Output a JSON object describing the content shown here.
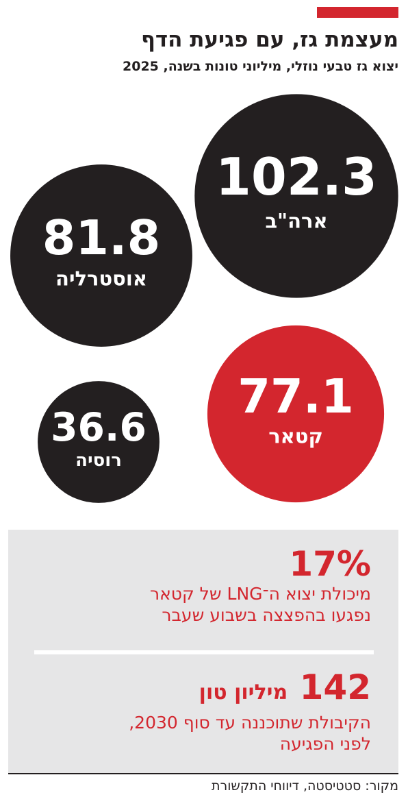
{
  "chart_data": {
    "type": "bubble",
    "title": "מעצמת גז, עם פגיעת הדף",
    "subtitle": "יצוא גז טבעי נוזלי, מיליוני טונות בשנה, 2025",
    "categories": [
      "ארה\"ב",
      "אוסטרליה",
      "קטאר",
      "רוסיה"
    ],
    "values": [
      102.3,
      81.8,
      77.1,
      36.6
    ],
    "colors": [
      "#231f20",
      "#231f20",
      "#d3262e",
      "#231f20"
    ]
  },
  "facts": [
    {
      "headline": "17%",
      "text": [
        "מיכולת יצוא ה־LNG של קטאר",
        "נפגעו בהפצצה בשבוע שעבר"
      ]
    },
    {
      "headline": "142",
      "unit": "מיליון טון",
      "text": [
        "הקיבולת שתוכננה עד סוף 2030,",
        "לפני הפגיעה"
      ]
    }
  ],
  "source": "מקור: סטטיסטה, דיווחי התקשורת"
}
